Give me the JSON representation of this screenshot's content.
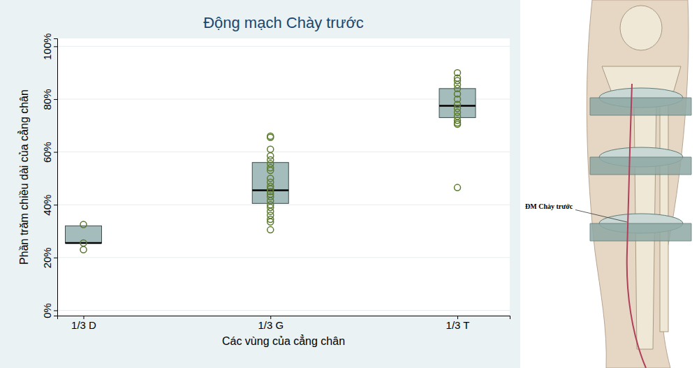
{
  "chart_data": {
    "type": "box",
    "title": "Động mạch Chày trước",
    "x_label": "Các vùng của cẳng chân",
    "y_label": "Phần trăm chiều dài của cẳng chân",
    "categories": [
      "1/3 D",
      "1/3 G",
      "1/3 T"
    ],
    "boxes": [
      {
        "q1": 25.5,
        "median": 25.5,
        "q3": 32,
        "points": [
          32.5,
          25.5,
          23
        ]
      },
      {
        "q1": 40.5,
        "median": 45.5,
        "q3": 56,
        "points": [
          66,
          65.5,
          61,
          58.5,
          57,
          55.5,
          54,
          53,
          50,
          48.5,
          47,
          46,
          45,
          44,
          43,
          41.5,
          40,
          39,
          37.5,
          36,
          34.5,
          33.5,
          30.5
        ]
      },
      {
        "q1": 73,
        "median": 77.5,
        "q3": 84,
        "points": [
          90,
          88,
          87,
          85.5,
          84,
          82,
          80,
          78,
          76.5,
          75,
          73.5,
          72,
          71,
          70.5,
          46.5
        ]
      }
    ],
    "ylim": [
      -2,
      103
    ],
    "yticks": [
      {
        "value": 0,
        "label": "0%"
      },
      {
        "value": 20,
        "label": "20%"
      },
      {
        "value": 40,
        "label": "40%"
      },
      {
        "value": 60,
        "label": "60%"
      },
      {
        "value": 80,
        "label": "80%"
      },
      {
        "value": 100,
        "label": "100%"
      }
    ],
    "grid": true,
    "color": "#a5bcbc",
    "marker": "circle"
  },
  "illustration": {
    "label": "ĐM Chày trước"
  }
}
